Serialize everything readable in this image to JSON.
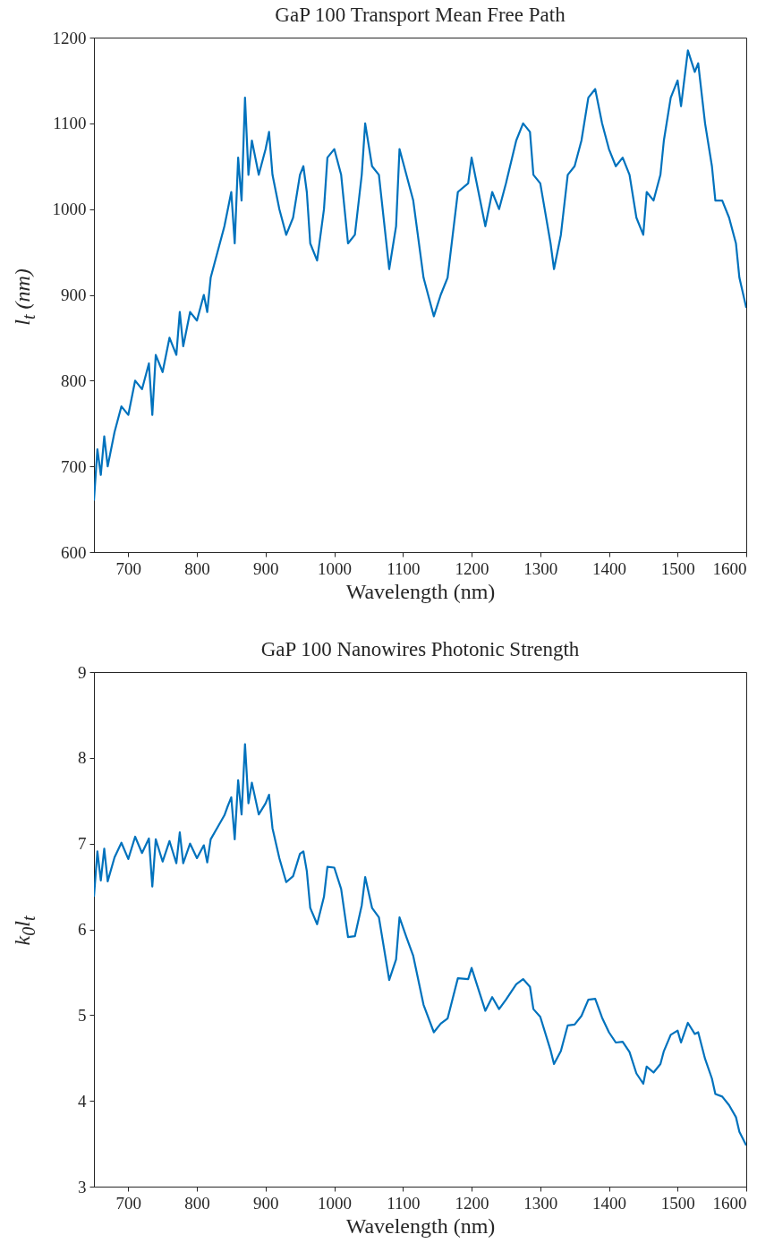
{
  "chart_data": [
    {
      "type": "line",
      "title": "GaP 100 Transport Mean Free Path",
      "xlabel": "Wavelength (nm)",
      "ylabel": "l$_{t}$ (nm)",
      "xlim": [
        650,
        1600
      ],
      "xticks": [
        700,
        800,
        900,
        1000,
        1100,
        1200,
        1300,
        1400,
        1500,
        1600
      ],
      "ylim": [
        600,
        1200
      ],
      "yticks": [
        600,
        700,
        800,
        900,
        1000,
        1100,
        1200
      ],
      "x": [
        650,
        655,
        660,
        665,
        670,
        680,
        690,
        700,
        710,
        720,
        730,
        735,
        740,
        750,
        760,
        770,
        775,
        780,
        790,
        800,
        810,
        815,
        820,
        830,
        840,
        845,
        850,
        855,
        860,
        865,
        870,
        875,
        880,
        890,
        900,
        905,
        910,
        920,
        930,
        940,
        950,
        955,
        960,
        965,
        975,
        985,
        990,
        1000,
        1010,
        1020,
        1030,
        1040,
        1045,
        1055,
        1065,
        1080,
        1090,
        1095,
        1105,
        1115,
        1130,
        1145,
        1155,
        1165,
        1180,
        1195,
        1200,
        1210,
        1220,
        1230,
        1240,
        1250,
        1265,
        1275,
        1285,
        1290,
        1300,
        1315,
        1320,
        1330,
        1340,
        1350,
        1360,
        1370,
        1380,
        1390,
        1400,
        1410,
        1420,
        1430,
        1440,
        1450,
        1455,
        1465,
        1475,
        1480,
        1490,
        1500,
        1505,
        1515,
        1525,
        1530,
        1540,
        1550,
        1555,
        1565,
        1575,
        1585,
        1590,
        1600
      ],
      "series": [
        {
          "color": "#0072bd",
          "values": [
            660,
            720,
            690,
            735,
            700,
            740,
            770,
            760,
            800,
            790,
            820,
            760,
            830,
            810,
            850,
            830,
            880,
            840,
            880,
            870,
            900,
            880,
            920,
            950,
            980,
            1000,
            1020,
            960,
            1060,
            1010,
            1130,
            1040,
            1080,
            1040,
            1070,
            1090,
            1040,
            1000,
            970,
            990,
            1040,
            1050,
            1020,
            960,
            940,
            1000,
            1060,
            1070,
            1040,
            960,
            970,
            1040,
            1100,
            1050,
            1040,
            930,
            980,
            1070,
            1040,
            1010,
            920,
            875,
            900,
            920,
            1020,
            1030,
            1060,
            1020,
            980,
            1020,
            1000,
            1030,
            1080,
            1100,
            1090,
            1040,
            1030,
            960,
            930,
            970,
            1040,
            1050,
            1080,
            1130,
            1140,
            1100,
            1070,
            1050,
            1060,
            1040,
            990,
            970,
            1020,
            1010,
            1040,
            1080,
            1130,
            1150,
            1120,
            1185,
            1160,
            1170,
            1100,
            1050,
            1010,
            1010,
            990,
            960,
            920,
            885
          ]
        }
      ]
    },
    {
      "type": "line",
      "title": "GaP 100 Nanowires Photonic Strength",
      "xlabel": "Wavelength (nm)",
      "ylabel": "k$_{0}$l$_{t}$",
      "xlim": [
        650,
        1600
      ],
      "xticks": [
        700,
        800,
        900,
        1000,
        1100,
        1200,
        1300,
        1400,
        1500,
        1600
      ],
      "ylim": [
        3,
        9
      ],
      "yticks": [
        3,
        4,
        5,
        6,
        7,
        8,
        9
      ],
      "x": [
        650,
        655,
        660,
        665,
        670,
        680,
        690,
        700,
        710,
        720,
        730,
        735,
        740,
        750,
        760,
        770,
        775,
        780,
        790,
        800,
        810,
        815,
        820,
        830,
        840,
        845,
        850,
        855,
        860,
        865,
        870,
        875,
        880,
        890,
        900,
        905,
        910,
        920,
        930,
        940,
        950,
        955,
        960,
        965,
        975,
        985,
        990,
        1000,
        1010,
        1020,
        1030,
        1040,
        1045,
        1055,
        1065,
        1080,
        1090,
        1095,
        1105,
        1115,
        1130,
        1145,
        1155,
        1165,
        1180,
        1195,
        1200,
        1210,
        1220,
        1230,
        1240,
        1250,
        1265,
        1275,
        1285,
        1290,
        1300,
        1315,
        1320,
        1330,
        1340,
        1350,
        1360,
        1370,
        1380,
        1390,
        1400,
        1410,
        1420,
        1430,
        1440,
        1450,
        1455,
        1465,
        1475,
        1480,
        1490,
        1500,
        1505,
        1515,
        1525,
        1530,
        1540,
        1550,
        1555,
        1565,
        1575,
        1585,
        1590,
        1600
      ],
      "series": [
        {
          "color": "#0072bd",
          "values": [
            6.38,
            6.91,
            6.57,
            6.94,
            6.56,
            6.84,
            7.01,
            6.82,
            7.08,
            6.89,
            7.06,
            6.5,
            7.05,
            6.79,
            7.03,
            6.77,
            7.13,
            6.77,
            7.0,
            6.83,
            6.98,
            6.78,
            7.05,
            7.19,
            7.33,
            7.44,
            7.54,
            7.05,
            7.74,
            7.34,
            8.16,
            7.47,
            7.71,
            7.34,
            7.47,
            7.57,
            7.18,
            6.83,
            6.55,
            6.62,
            6.88,
            6.91,
            6.68,
            6.25,
            6.06,
            6.38,
            6.73,
            6.72,
            6.47,
            5.91,
            5.92,
            6.28,
            6.61,
            6.25,
            6.14,
            5.41,
            5.65,
            6.14,
            5.91,
            5.69,
            5.12,
            4.8,
            4.9,
            4.96,
            5.43,
            5.42,
            5.55,
            5.3,
            5.05,
            5.21,
            5.07,
            5.18,
            5.36,
            5.42,
            5.33,
            5.07,
            4.98,
            4.59,
            4.43,
            4.58,
            4.88,
            4.89,
            4.99,
            5.18,
            5.19,
            4.97,
            4.8,
            4.68,
            4.69,
            4.57,
            4.32,
            4.2,
            4.4,
            4.33,
            4.43,
            4.58,
            4.77,
            4.82,
            4.68,
            4.91,
            4.78,
            4.8,
            4.49,
            4.26,
            4.08,
            4.05,
            3.95,
            3.81,
            3.64,
            3.48
          ]
        }
      ]
    }
  ]
}
